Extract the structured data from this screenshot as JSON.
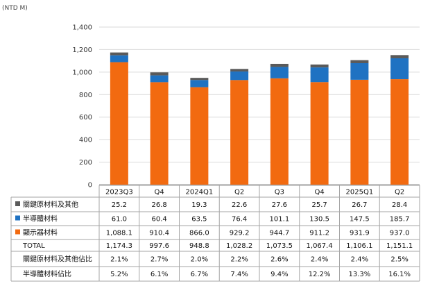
{
  "unit_label": "(NTD M)",
  "chart_data": {
    "type": "bar",
    "stacked": true,
    "categories": [
      "2023Q3",
      "Q4",
      "2024Q1",
      "Q2",
      "Q3",
      "Q4",
      "2025Q1",
      "Q2"
    ],
    "series": [
      {
        "name": "顯示器材料",
        "color": "#F26A10",
        "values": [
          1088.1,
          910.4,
          866.0,
          929.2,
          944.7,
          911.2,
          931.9,
          937.0
        ]
      },
      {
        "name": "半導體材料",
        "color": "#1F72C2",
        "values": [
          61.0,
          60.4,
          63.5,
          76.4,
          101.1,
          130.5,
          147.5,
          185.7
        ]
      },
      {
        "name": "關鍵原材料及其他",
        "color": "#5A5A5A",
        "values": [
          25.2,
          26.8,
          19.3,
          22.6,
          27.6,
          25.7,
          26.7,
          28.4
        ]
      }
    ],
    "ylim": [
      0,
      1400
    ],
    "yticks": [
      0,
      200,
      400,
      600,
      800,
      1000,
      1200,
      1400
    ],
    "ytick_labels": [
      "0",
      "200",
      "400",
      "600",
      "800",
      "1,000",
      "1,200",
      "1,400"
    ],
    "grid": true,
    "table": {
      "header": [
        "2023Q3",
        "Q4",
        "2024Q1",
        "Q2",
        "Q3",
        "Q4",
        "2025Q1",
        "Q2"
      ],
      "rows": [
        {
          "label": "關鍵原材料及其他",
          "swatch": "#5A5A5A",
          "cells": [
            "25.2",
            "26.8",
            "19.3",
            "22.6",
            "27.6",
            "25.7",
            "26.7",
            "28.4"
          ]
        },
        {
          "label": "半導體材料",
          "swatch": "#1F72C2",
          "cells": [
            "61.0",
            "60.4",
            "63.5",
            "76.4",
            "101.1",
            "130.5",
            "147.5",
            "185.7"
          ]
        },
        {
          "label": "顯示器材料",
          "swatch": "#F26A10",
          "cells": [
            "1,088.1",
            "910.4",
            "866.0",
            "929.2",
            "944.7",
            "911.2",
            "931.9",
            "937.0"
          ]
        },
        {
          "label": "TOTAL",
          "swatch": "",
          "cells": [
            "1,174.3",
            "997.6",
            "948.8",
            "1,028.2",
            "1,073.5",
            "1,067.4",
            "1,106.1",
            "1,151.1"
          ]
        },
        {
          "label": "關鍵原材料及其他佔比",
          "swatch": "",
          "cells": [
            "2.1%",
            "2.7%",
            "2.0%",
            "2.2%",
            "2.6%",
            "2.4%",
            "2.4%",
            "2.5%"
          ]
        },
        {
          "label": "半導體材料佔比",
          "swatch": "",
          "cells": [
            "5.2%",
            "6.1%",
            "6.7%",
            "7.4%",
            "9.4%",
            "12.2%",
            "13.3%",
            "16.1%"
          ]
        }
      ]
    }
  }
}
